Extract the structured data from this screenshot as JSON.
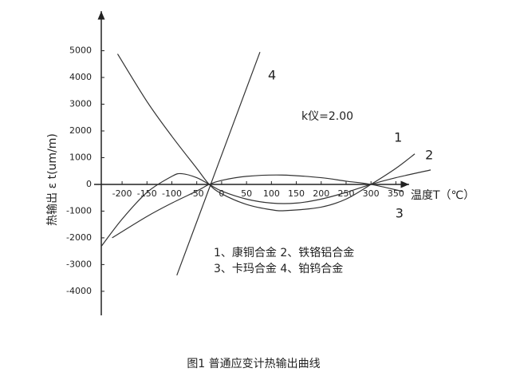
{
  "chart_data": {
    "type": "line",
    "y_label": "热输出 ε t(um/m)",
    "x_label": "温度T（℃）",
    "caption": "图1 普通应变计热输出曲线",
    "annotations": [
      "k仪=2.00",
      "1、康铜合金  2、铁铬铝合金",
      "3、卡玛合金  4、铂钨合金"
    ],
    "xlim": [
      -253,
      375
    ],
    "ylim": [
      -4900,
      6450
    ],
    "xticks": [
      -200,
      -150,
      -100,
      -50,
      0,
      50,
      100,
      150,
      200,
      250,
      300,
      350
    ],
    "yticks": [
      -4000,
      -3000,
      -2000,
      -1000,
      0,
      1000,
      2000,
      3000,
      4000,
      5000
    ],
    "series": [
      {
        "name": "1",
        "color": "#333333",
        "x": [
          -209,
          -150,
          -100,
          -50,
          -25,
          0,
          50,
          100,
          130,
          200,
          250,
          300,
          350,
          388
        ],
        "values": [
          4880,
          3100,
          1800,
          600,
          0,
          -350,
          -750,
          -950,
          -980,
          -850,
          -550,
          0,
          600,
          1140
        ]
      },
      {
        "name": "2",
        "color": "#333333",
        "x": [
          -241,
          -200,
          -150,
          -100,
          -80,
          -50,
          -25,
          0,
          50,
          100,
          150,
          200,
          250,
          300,
          350,
          420
        ],
        "values": [
          -2300,
          -1300,
          -300,
          300,
          400,
          250,
          0,
          -250,
          -550,
          -700,
          -700,
          -550,
          -300,
          0,
          250,
          540
        ]
      },
      {
        "name": "3",
        "color": "#333333",
        "x": [
          -220,
          -150,
          -100,
          -50,
          -25,
          0,
          50,
          120,
          200,
          250,
          300,
          365
        ],
        "values": [
          -2000,
          -1200,
          -700,
          -250,
          0,
          150,
          300,
          350,
          250,
          120,
          0,
          -270
        ]
      },
      {
        "name": "4",
        "color": "#333333",
        "x": [
          -90,
          -22,
          77
        ],
        "values": [
          -3400,
          0,
          4950
        ]
      }
    ]
  }
}
